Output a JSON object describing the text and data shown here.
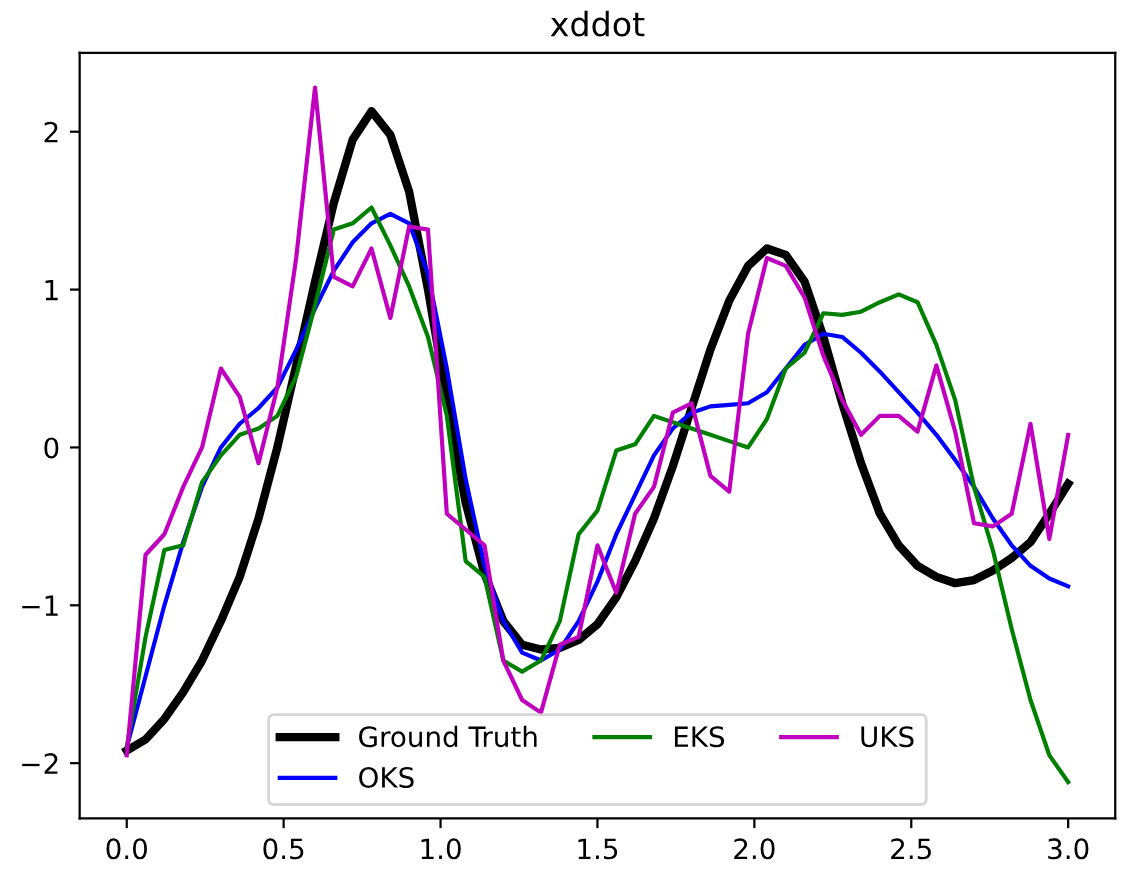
{
  "chart_data": {
    "type": "line",
    "title": "xddot",
    "x": [
      0,
      0.06,
      0.12,
      0.18,
      0.24,
      0.3,
      0.36,
      0.42,
      0.48,
      0.54,
      0.6,
      0.66,
      0.72,
      0.78,
      0.84,
      0.9,
      0.96,
      1.02,
      1.08,
      1.14,
      1.2,
      1.26,
      1.32,
      1.38,
      1.44,
      1.5,
      1.56,
      1.62,
      1.68,
      1.74,
      1.8,
      1.86,
      1.92,
      1.98,
      2.04,
      2.1,
      2.16,
      2.22,
      2.28,
      2.34,
      2.4,
      2.46,
      2.52,
      2.58,
      2.64,
      2.7,
      2.76,
      2.82,
      2.88,
      2.94,
      3.0
    ],
    "series": [
      {
        "name": "Ground Truth",
        "color": "#000000",
        "values": [
          -1.92,
          -1.85,
          -1.72,
          -1.55,
          -1.35,
          -1.1,
          -0.82,
          -0.45,
          0.0,
          0.52,
          1.05,
          1.55,
          1.95,
          2.13,
          1.98,
          1.62,
          1.0,
          0.3,
          -0.35,
          -0.8,
          -1.1,
          -1.25,
          -1.28,
          -1.27,
          -1.22,
          -1.12,
          -0.95,
          -0.72,
          -0.45,
          -0.12,
          0.25,
          0.62,
          0.93,
          1.15,
          1.26,
          1.22,
          1.05,
          0.7,
          0.28,
          -0.1,
          -0.42,
          -0.62,
          -0.75,
          -0.82,
          -0.86,
          -0.84,
          -0.78,
          -0.7,
          -0.6,
          -0.42,
          -0.23
        ]
      },
      {
        "name": "OKS",
        "color": "#0000ff",
        "values": [
          -1.9,
          -1.45,
          -1.0,
          -0.6,
          -0.25,
          0.0,
          0.15,
          0.25,
          0.38,
          0.62,
          0.88,
          1.12,
          1.3,
          1.42,
          1.48,
          1.42,
          1.1,
          0.5,
          -0.2,
          -0.75,
          -1.1,
          -1.3,
          -1.35,
          -1.28,
          -1.1,
          -0.85,
          -0.55,
          -0.3,
          -0.05,
          0.12,
          0.22,
          0.26,
          0.27,
          0.28,
          0.35,
          0.5,
          0.65,
          0.72,
          0.7,
          0.6,
          0.48,
          0.35,
          0.22,
          0.08,
          -0.08,
          -0.25,
          -0.45,
          -0.62,
          -0.75,
          -0.83,
          -0.88
        ]
      },
      {
        "name": "EKS",
        "color": "#008000",
        "values": [
          -1.9,
          -1.2,
          -0.65,
          -0.62,
          -0.22,
          -0.05,
          0.08,
          0.12,
          0.2,
          0.45,
          0.9,
          1.38,
          1.42,
          1.52,
          1.28,
          1.02,
          0.7,
          0.2,
          -0.72,
          -0.82,
          -1.35,
          -1.42,
          -1.35,
          -1.1,
          -0.55,
          -0.4,
          -0.02,
          0.02,
          0.2,
          0.16,
          0.12,
          0.08,
          0.04,
          0.0,
          0.18,
          0.5,
          0.6,
          0.85,
          0.84,
          0.86,
          0.92,
          0.97,
          0.92,
          0.65,
          0.3,
          -0.25,
          -0.65,
          -1.15,
          -1.6,
          -1.95,
          -2.12
        ]
      },
      {
        "name": "UKS",
        "color": "#bf00bf",
        "values": [
          -1.95,
          -0.68,
          -0.55,
          -0.25,
          0.0,
          0.5,
          0.32,
          -0.1,
          0.38,
          1.2,
          2.28,
          1.08,
          1.02,
          1.26,
          0.82,
          1.4,
          1.38,
          -0.42,
          -0.52,
          -0.62,
          -1.35,
          -1.6,
          -1.68,
          -1.25,
          -1.2,
          -0.62,
          -0.92,
          -0.42,
          -0.25,
          0.22,
          0.28,
          -0.18,
          -0.28,
          0.72,
          1.2,
          1.15,
          0.95,
          0.58,
          0.3,
          0.08,
          0.2,
          0.2,
          0.1,
          0.52,
          0.1,
          -0.48,
          -0.5,
          -0.42,
          0.15,
          -0.58,
          0.08
        ]
      }
    ],
    "xlim": [
      -0.15,
      3.15
    ],
    "ylim": [
      -2.35,
      2.5
    ],
    "xticks": [
      {
        "value": 0,
        "label": "0.0"
      },
      {
        "value": 0.5,
        "label": "0.5"
      },
      {
        "value": 1,
        "label": "1.0"
      },
      {
        "value": 1.5,
        "label": "1.5"
      },
      {
        "value": 2,
        "label": "2.0"
      },
      {
        "value": 2.5,
        "label": "2.5"
      },
      {
        "value": 3,
        "label": "3.0"
      }
    ],
    "yticks": [
      {
        "value": -2,
        "label": "−2"
      },
      {
        "value": -1,
        "label": "−1"
      },
      0,
      1,
      2
    ],
    "legend": "bottom",
    "grid": false,
    "marker": "none",
    "line_style": "solid"
  }
}
